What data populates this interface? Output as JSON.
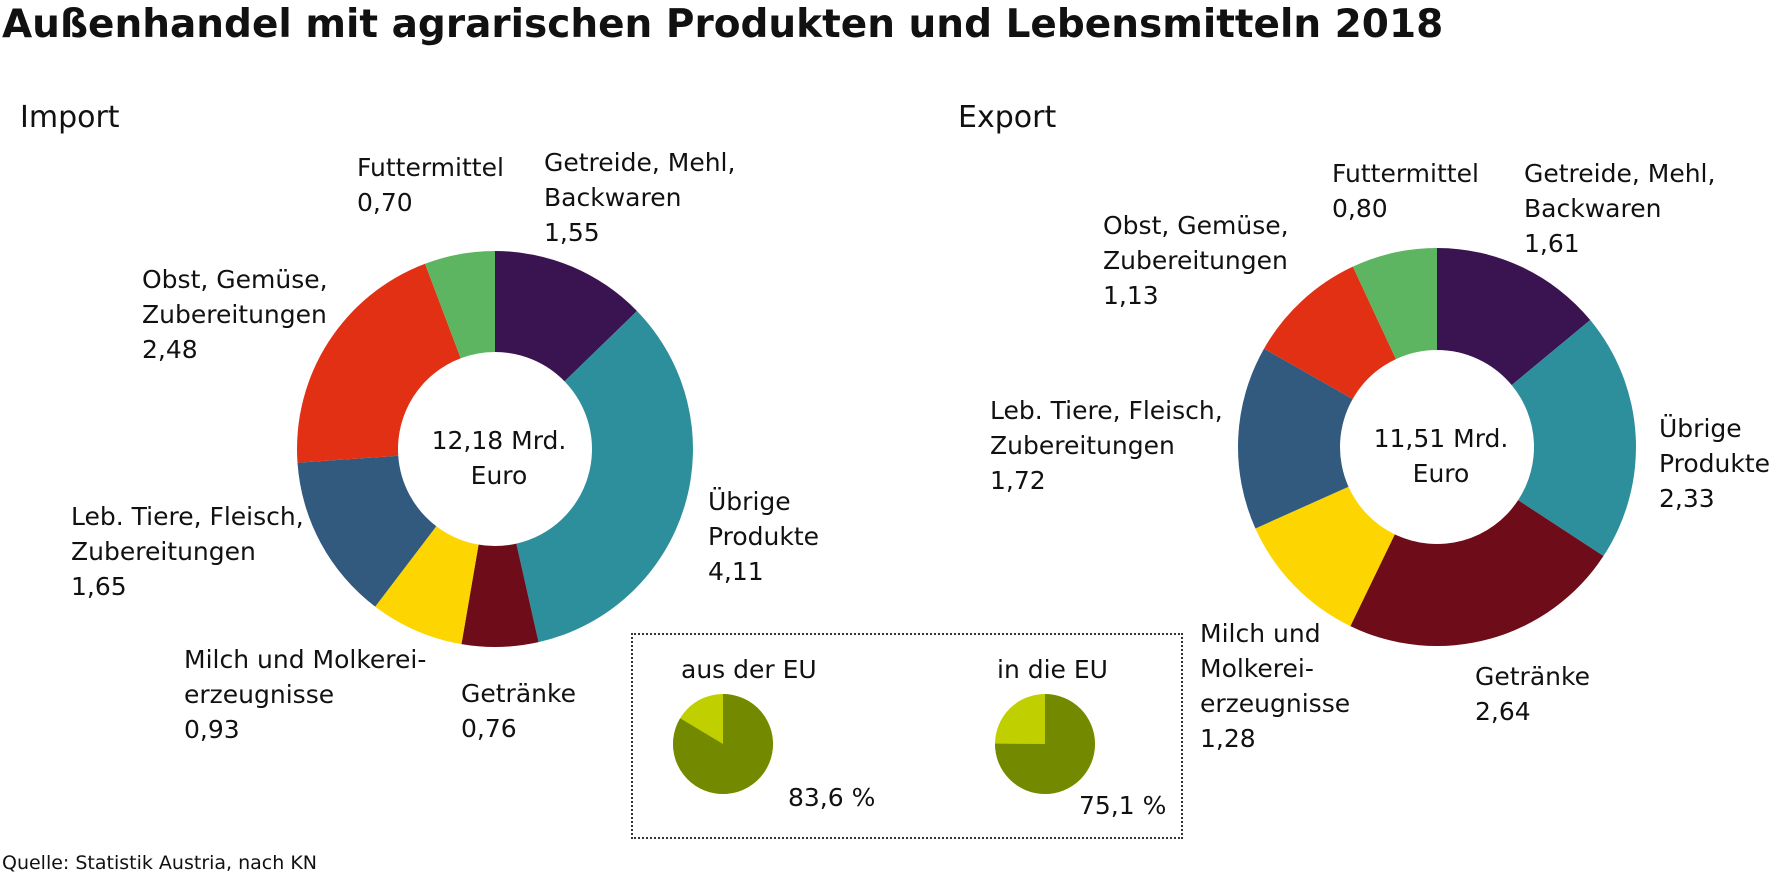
{
  "title": "Außenhandel mit agrarischen Produkten und Lebensmitteln 2018",
  "source": "Quelle: Statistik Austria, nach KN",
  "chart_data": [
    {
      "type": "donut",
      "title": "Import",
      "center_label": "12,18 Mrd.\nEuro",
      "categories": [
        "Getreide, Mehl,\nBackwaren",
        "Übrige\nProdukte",
        "Getränke",
        "Milch und Molkerei-\nerzeugnisse",
        "Leb. Tiere, Fleisch,\nZubereitungen",
        "Obst, Gemüse,\nZubereitungen",
        "Futtermittel"
      ],
      "values": [
        1.55,
        4.11,
        0.76,
        0.93,
        1.65,
        2.48,
        0.7
      ],
      "value_labels": [
        "1,55",
        "4,11",
        "0,76",
        "0,93",
        "1,65",
        "2,48",
        "0,70"
      ],
      "colors": [
        "#3a1450",
        "#2e8f9c",
        "#6e0c1a",
        "#fdd500",
        "#315a7e",
        "#e23014",
        "#5db562"
      ]
    },
    {
      "type": "donut",
      "title": "Export",
      "center_label": "11,51 Mrd.\nEuro",
      "categories": [
        "Getreide, Mehl,\nBackwaren",
        "Übrige\nProdukte",
        "Getränke",
        "Milch und\nMolkerei-\nerzeugnisse",
        "Leb. Tiere, Fleisch,\nZubereitungen",
        "Obst, Gemüse,\nZubereitungen",
        "Futtermittel"
      ],
      "values": [
        1.61,
        2.33,
        2.64,
        1.28,
        1.72,
        1.13,
        0.8
      ],
      "value_labels": [
        "1,61",
        "2,33",
        "2,64",
        "1,28",
        "1,72",
        "1,13",
        "0,80"
      ],
      "colors": [
        "#3a1450",
        "#2e8f9c",
        "#6e0c1a",
        "#fdd500",
        "#315a7e",
        "#e23014",
        "#5db562"
      ]
    },
    {
      "type": "pie",
      "title": "aus der EU",
      "values": [
        83.6
      ],
      "value_labels": [
        "83,6 %"
      ],
      "colors": [
        "#738a00"
      ],
      "background_color": "#bfcf00"
    },
    {
      "type": "pie",
      "title": "in die EU",
      "values": [
        75.1
      ],
      "value_labels": [
        "75,1 %"
      ],
      "colors": [
        "#738a00"
      ],
      "background_color": "#bfcf00"
    }
  ]
}
